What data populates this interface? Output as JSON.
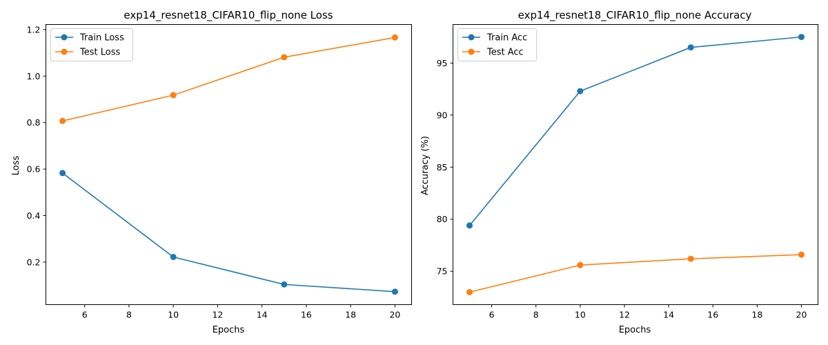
{
  "chart_data": [
    {
      "type": "line",
      "title": "exp14_resnet18_CIFAR10_flip_none Loss",
      "xlabel": "Epochs",
      "ylabel": "Loss",
      "x": [
        5,
        10,
        15,
        20
      ],
      "xlim": [
        4.25,
        20.75
      ],
      "ylim": [
        0.0172,
        1.2218
      ],
      "xticks": [
        6,
        8,
        10,
        12,
        14,
        16,
        18,
        20
      ],
      "yticks": [
        0.2,
        0.4,
        0.6,
        0.8,
        1.0,
        1.2
      ],
      "ytick_labels": [
        "0.2",
        "0.4",
        "0.6",
        "0.8",
        "1.0",
        "1.2"
      ],
      "legend_position": "top-left",
      "grid": false,
      "series": [
        {
          "name": "Train Loss",
          "color": "#1f77b4",
          "values": [
            0.583,
            0.222,
            0.104,
            0.073
          ]
        },
        {
          "name": "Test Loss",
          "color": "#ff7f0e",
          "values": [
            0.807,
            0.918,
            1.081,
            1.166
          ]
        }
      ]
    },
    {
      "type": "line",
      "title": "exp14_resnet18_CIFAR10_flip_none Accuracy",
      "xlabel": "Epochs",
      "ylabel": "Accuracy (%)",
      "x": [
        5,
        10,
        15,
        20
      ],
      "xlim": [
        4.25,
        20.75
      ],
      "ylim": [
        71.8,
        98.7
      ],
      "xticks": [
        6,
        8,
        10,
        12,
        14,
        16,
        18,
        20
      ],
      "yticks": [
        75,
        80,
        85,
        90,
        95
      ],
      "ytick_labels": [
        "75",
        "80",
        "85",
        "90",
        "95"
      ],
      "legend_position": "top-left",
      "grid": false,
      "series": [
        {
          "name": "Train Acc",
          "color": "#1f77b4",
          "values": [
            79.4,
            92.3,
            96.5,
            97.5
          ]
        },
        {
          "name": "Test Acc",
          "color": "#ff7f0e",
          "values": [
            73.0,
            75.6,
            76.2,
            76.6
          ]
        }
      ]
    }
  ]
}
